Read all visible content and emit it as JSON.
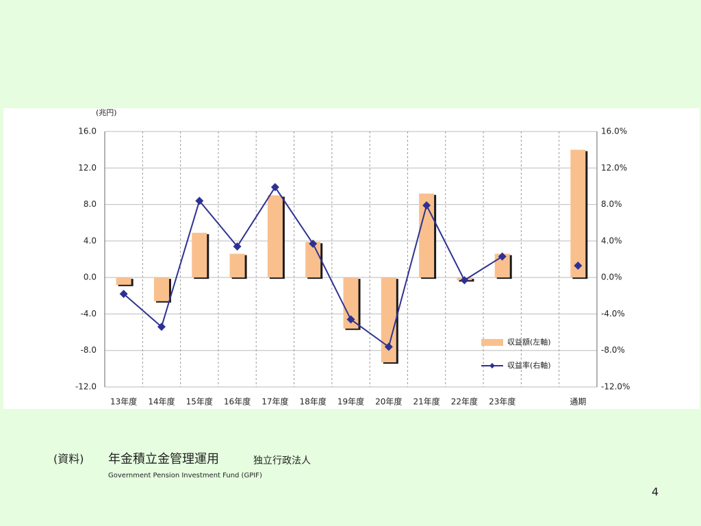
{
  "chart_data": {
    "type": "bar",
    "unit_label": "(兆円)",
    "categories": [
      "13年度",
      "14年度",
      "15年度",
      "16年度",
      "17年度",
      "18年度",
      "19年度",
      "20年度",
      "21年度",
      "22年度",
      "23年度",
      null,
      "通期"
    ],
    "series": [
      {
        "name": "収益額(左軸)",
        "type": "bar",
        "color": "#f9c08e",
        "values": [
          -0.8,
          -2.6,
          4.9,
          2.6,
          9.0,
          3.9,
          -5.6,
          -9.3,
          9.2,
          -0.3,
          2.6,
          null,
          14.0
        ]
      },
      {
        "name": "収益率(右軸)",
        "type": "line",
        "axis": "y2",
        "color": "#2e3192",
        "values": [
          -1.8,
          -5.4,
          8.4,
          3.4,
          9.9,
          3.7,
          -4.6,
          -7.6,
          7.9,
          -0.3,
          2.3,
          null,
          1.3
        ]
      }
    ],
    "ylim": [
      -12,
      16
    ],
    "yticks": [
      {
        "value": -12,
        "label": "-12.0"
      },
      {
        "value": -8,
        "label": "-8.0"
      },
      {
        "value": -4,
        "label": "-4.0"
      },
      {
        "value": 0,
        "label": "0.0"
      },
      {
        "value": 4,
        "label": "4.0"
      },
      {
        "value": 8,
        "label": "8.0"
      },
      {
        "value": 12,
        "label": "12.0"
      },
      {
        "value": 16,
        "label": "16.0"
      }
    ],
    "y2lim": [
      -12,
      16
    ],
    "y2ticks": [
      {
        "value": -12,
        "label": "-12.0%"
      },
      {
        "value": -8,
        "label": "-8.0%"
      },
      {
        "value": -4,
        "label": "-4.0%"
      },
      {
        "value": 0,
        "label": "0.0%"
      },
      {
        "value": 4,
        "label": "4.0%"
      },
      {
        "value": 8,
        "label": "8.0%"
      },
      {
        "value": 12,
        "label": "12.0%"
      },
      {
        "value": 16,
        "label": "16.0%"
      }
    ],
    "grid": true,
    "legend": "lower right"
  },
  "source": {
    "label": "(資料)",
    "org": "年金積立金管理運用",
    "org_suffix": "独立行政法人",
    "english": "Government Pension Investment Fund (GPIF)"
  },
  "page_number": 4
}
